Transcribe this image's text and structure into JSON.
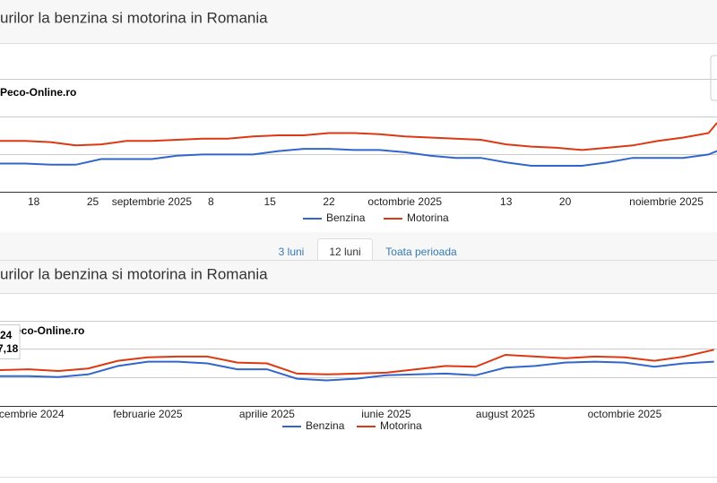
{
  "chart_data": [
    {
      "type": "line",
      "title": "urilor la benzina si motorina in Romania",
      "watermark": "Peco-Online.ro",
      "x": [
        0,
        3,
        6,
        9,
        12,
        15,
        18,
        21,
        24,
        27,
        30,
        33,
        36,
        39,
        42,
        45,
        48,
        51,
        54,
        57,
        60,
        63,
        66,
        69,
        72,
        75,
        78,
        81,
        84,
        85
      ],
      "xlim": [
        0,
        85
      ],
      "xticks": [
        {
          "value": 4,
          "label": "18"
        },
        {
          "value": 11,
          "label": "25"
        },
        {
          "value": 18,
          "label": "septembrie 2025"
        },
        {
          "value": 25,
          "label": "8"
        },
        {
          "value": 32,
          "label": "15"
        },
        {
          "value": 39,
          "label": "22"
        },
        {
          "value": 48,
          "label": "octombrie 2025"
        },
        {
          "value": 60,
          "label": "13"
        },
        {
          "value": 67,
          "label": "20"
        },
        {
          "value": 79,
          "label": "noiembrie 2025"
        }
      ],
      "ylim": [
        6.8,
        7.8
      ],
      "series": [
        {
          "name": "Benzina",
          "color": "#3366cc",
          "values": [
            7.05,
            7.05,
            7.04,
            7.04,
            7.09,
            7.09,
            7.09,
            7.12,
            7.13,
            7.13,
            7.13,
            7.16,
            7.18,
            7.18,
            7.17,
            7.17,
            7.15,
            7.12,
            7.1,
            7.1,
            7.06,
            7.03,
            7.03,
            7.03,
            7.06,
            7.1,
            7.1,
            7.1,
            7.13,
            7.16
          ]
        },
        {
          "name": "Motorina",
          "color": "#dc3912",
          "values": [
            7.25,
            7.25,
            7.24,
            7.21,
            7.22,
            7.25,
            7.25,
            7.26,
            7.27,
            7.27,
            7.29,
            7.3,
            7.3,
            7.32,
            7.32,
            7.31,
            7.29,
            7.28,
            7.27,
            7.26,
            7.22,
            7.2,
            7.19,
            7.17,
            7.19,
            7.21,
            7.25,
            7.28,
            7.32,
            7.41
          ]
        }
      ]
    },
    {
      "type": "line",
      "title": "urilor la benzina si motorina in Romania",
      "watermark": "Peco-Online.ro",
      "x": [
        -0.5,
        0,
        0.5,
        1,
        1.5,
        2,
        2.5,
        3,
        3.5,
        4,
        4.5,
        5,
        5.5,
        6,
        6.5,
        7,
        7.5,
        8,
        8.5,
        9,
        9.5,
        10,
        10.5,
        11,
        11.5
      ],
      "xlim": [
        -0.48,
        11.55
      ],
      "xticks": [
        {
          "value": 0,
          "label": "ecembrie 2024"
        },
        {
          "value": 2,
          "label": "februarie 2025"
        },
        {
          "value": 4,
          "label": "aprilie 2025"
        },
        {
          "value": 6,
          "label": "iunie 2025"
        },
        {
          "value": 8,
          "label": "august 2025"
        },
        {
          "value": 10,
          "label": "octombrie 2025"
        }
      ],
      "ylim": [
        6.8,
        7.8
      ],
      "series": [
        {
          "name": "Benzina",
          "color": "#3366cc",
          "values": [
            7.15,
            7.15,
            7.14,
            7.17,
            7.27,
            7.32,
            7.32,
            7.3,
            7.23,
            7.23,
            7.12,
            7.1,
            7.12,
            7.16,
            7.17,
            7.18,
            7.16,
            7.25,
            7.27,
            7.31,
            7.32,
            7.31,
            7.26,
            7.3,
            7.32
          ]
        },
        {
          "name": "Motorina",
          "color": "#dc3912",
          "values": [
            7.22,
            7.23,
            7.21,
            7.24,
            7.33,
            7.37,
            7.38,
            7.38,
            7.31,
            7.3,
            7.18,
            7.17,
            7.18,
            7.19,
            7.23,
            7.27,
            7.26,
            7.4,
            7.38,
            7.36,
            7.38,
            7.37,
            7.33,
            7.38,
            7.46
          ]
        }
      ],
      "tooltip": {
        "title": "24",
        "value": "7,18"
      }
    }
  ],
  "tabs": [
    "3 luni",
    "12 luni",
    "Toata perioada"
  ]
}
